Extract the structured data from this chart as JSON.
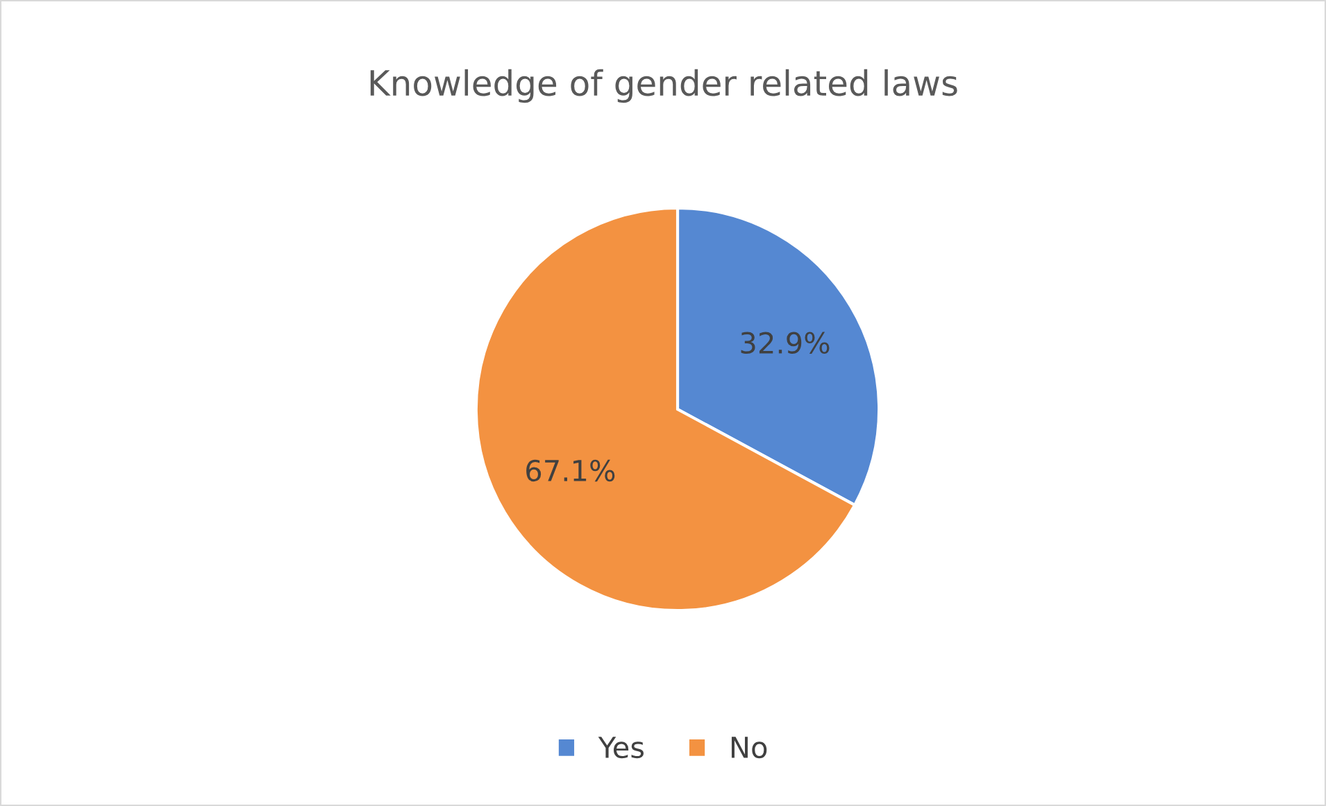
{
  "chart_data": {
    "type": "pie",
    "title": "Knowledge of gender related laws",
    "categories": [
      "Yes",
      "No"
    ],
    "values": [
      32.9,
      67.1
    ],
    "colors": [
      "#5588d2",
      "#f39241"
    ],
    "value_labels": [
      "32.9%",
      "67.1%"
    ],
    "legend": "bottom"
  }
}
